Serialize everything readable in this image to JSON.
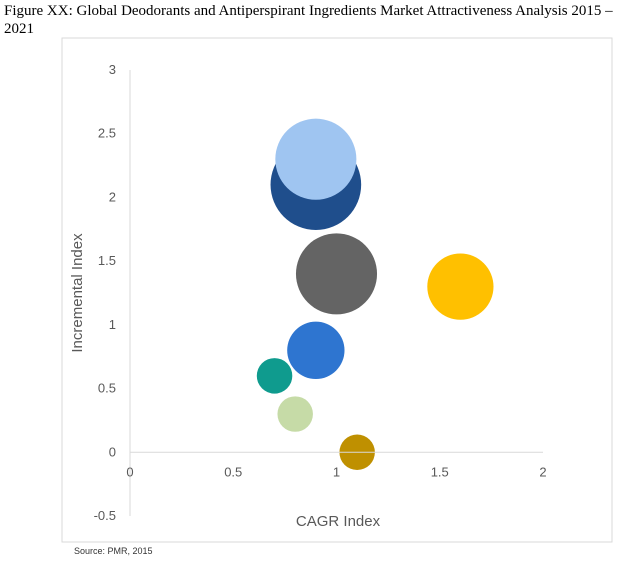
{
  "title": "Figure XX: Global Deodorants and Antiperspirant Ingredients Market Attractiveness Analysis 2015 – 2021",
  "source": "Source: PMR, 2015",
  "chart_data": {
    "type": "bubble",
    "xlabel": "CAGR Index",
    "ylabel": "Incremental Index",
    "xlim": [
      0,
      2
    ],
    "ylim": [
      -0.5,
      3
    ],
    "x_ticks": [
      "0",
      "0.5",
      "1",
      "1.5",
      "2"
    ],
    "y_ticks": [
      "-0.5",
      "0",
      "0.5",
      "1",
      "1.5",
      "2",
      "2.5",
      "3"
    ],
    "grid": false,
    "series": [
      {
        "x": 0.9,
        "y": 2.1,
        "size": 1.5,
        "color": "#1f4e8c"
      },
      {
        "x": 0.9,
        "y": 2.3,
        "size": 1.2,
        "color": "#9fc5f1"
      },
      {
        "x": 1.0,
        "y": 1.4,
        "size": 1.2,
        "color": "#646464"
      },
      {
        "x": 1.6,
        "y": 1.3,
        "size": 0.8,
        "color": "#ffc000"
      },
      {
        "x": 0.9,
        "y": 0.8,
        "size": 0.6,
        "color": "#2e75d0"
      },
      {
        "x": 0.7,
        "y": 0.6,
        "size": 0.23,
        "color": "#0f9b8e"
      },
      {
        "x": 0.8,
        "y": 0.3,
        "size": 0.23,
        "color": "#c6dba7"
      },
      {
        "x": 1.1,
        "y": 0.0,
        "size": 0.23,
        "color": "#bf9000"
      }
    ]
  }
}
